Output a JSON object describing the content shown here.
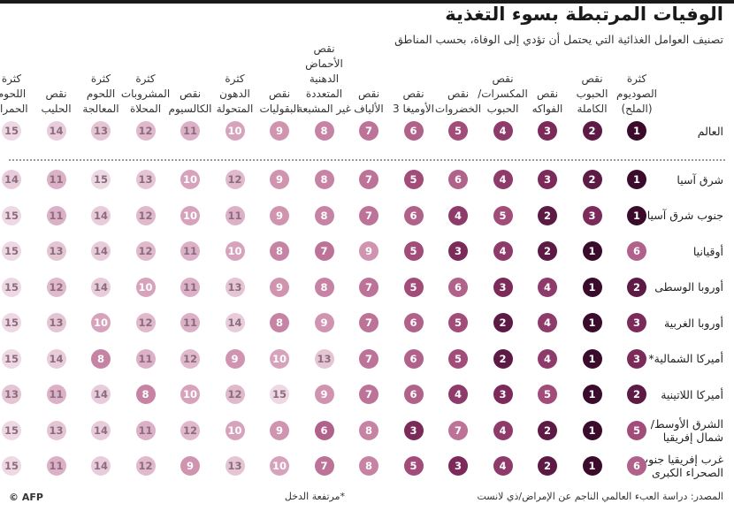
{
  "title": "الوفيات المرتبطة بسوء التغذية",
  "subtitle": "تصنيف العوامل الغذائية التي يحتمل أن تؤدي إلى الوفاة، بحسب المناطق",
  "footer": {
    "source": "المصدر: دراسة العبء العالمي الناجم عن الإمراض/ذي لانست",
    "note": "*مرتفعة الدخل",
    "logo": "© AFP"
  },
  "colors": {
    "1": "#3b0b2c",
    "2": "#5d1a45",
    "3": "#7b2a5a",
    "4": "#8e3b6b",
    "5": "#a24c7a",
    "6": "#b0628a",
    "7": "#bd7398",
    "8": "#c783a4",
    "9": "#d094b1",
    "10": "#d7a3bc",
    "11": "#dcb0c6",
    "12": "#e0b9cc",
    "13": "#e5c4d4",
    "14": "#e9ccdb",
    "15": "#eed8e3"
  },
  "chart_data": {
    "type": "table",
    "title": "الوفيات المرتبطة بسوء التغذية",
    "subtitle": "تصنيف العوامل الغذائية التي يحتمل أن تؤدي إلى الوفاة، بحسب المناطق",
    "factors": [
      "كثرة الصوديوم (الملح)",
      "نقص الحبوب الكاملة",
      "نقص الفواكه",
      "نقص المكسرات/ الحبوب",
      "نقص الخضروات",
      "نقص الأوميغا 3",
      "نقص الألياف",
      "نقص الأحماض الدهنية المتعددة غير المشبعة",
      "نقص البقوليات",
      "كثرة الدهون المتحولة",
      "نقص الكالسيوم",
      "كثرة المشروبات المحلاة",
      "كثرة اللحوم المعالجة",
      "نقص الحليب",
      "كثرة اللحوم الحمراء"
    ],
    "factor_lines": [
      [
        "كثرة",
        "الصوديوم",
        "(الملح)"
      ],
      [
        "نقص",
        "الحبوب",
        "الكاملة"
      ],
      [
        "نقص",
        "الفواكه"
      ],
      [
        "نقص",
        "المكسرات/",
        "الحبوب"
      ],
      [
        "نقص",
        "الخضروات"
      ],
      [
        "نقص",
        "الأوميغا 3"
      ],
      [
        "نقص",
        "الألياف"
      ],
      [
        "نقص",
        "الأحماض",
        "الدهنية",
        "المتعددة",
        "غير المشبعة"
      ],
      [
        "نقص",
        "البقوليات"
      ],
      [
        "كثرة",
        "الدهون",
        "المتحولة"
      ],
      [
        "نقص",
        "الكالسيوم"
      ],
      [
        "كثرة",
        "المشروبات",
        "المحلاة"
      ],
      [
        "كثرة",
        "اللحوم",
        "المعالجة"
      ],
      [
        "نقص",
        "الحليب"
      ],
      [
        "كثرة",
        "اللحوم",
        "الحمراء"
      ]
    ],
    "global": {
      "label": "العالم",
      "ranks": [
        1,
        2,
        3,
        4,
        5,
        6,
        7,
        8,
        9,
        10,
        11,
        12,
        13,
        14,
        15
      ]
    },
    "regions": [
      {
        "label": [
          "شرق آسيا"
        ],
        "ranks": [
          1,
          2,
          3,
          4,
          6,
          5,
          7,
          8,
          9,
          12,
          10,
          13,
          15,
          11,
          14
        ]
      },
      {
        "label": [
          "جنوب شرق آسيا"
        ],
        "ranks": [
          1,
          3,
          2,
          5,
          4,
          6,
          7,
          8,
          9,
          11,
          10,
          12,
          14,
          11,
          15
        ]
      },
      {
        "label": [
          "أوقيانيا"
        ],
        "ranks": [
          6,
          1,
          2,
          4,
          3,
          5,
          9,
          7,
          8,
          10,
          11,
          12,
          14,
          13,
          15
        ]
      },
      {
        "label": [
          "أوروبا الوسطى"
        ],
        "ranks": [
          2,
          1,
          4,
          3,
          6,
          5,
          7,
          8,
          9,
          13,
          11,
          10,
          14,
          12,
          15
        ]
      },
      {
        "label": [
          "أوروبا الغربية"
        ],
        "ranks": [
          3,
          1,
          4,
          2,
          5,
          6,
          7,
          9,
          8,
          14,
          11,
          12,
          10,
          13,
          15
        ]
      },
      {
        "label": [
          "أميركا الشمالية*"
        ],
        "ranks": [
          3,
          1,
          4,
          2,
          5,
          6,
          7,
          13,
          10,
          9,
          12,
          11,
          8,
          14,
          15
        ]
      },
      {
        "label": [
          "أميركا اللاتينية"
        ],
        "ranks": [
          2,
          1,
          5,
          3,
          4,
          6,
          7,
          9,
          15,
          12,
          10,
          8,
          14,
          11,
          13
        ]
      },
      {
        "label": [
          "الشرق الأوسط/",
          "شمال إفريقيا"
        ],
        "ranks": [
          5,
          1,
          2,
          4,
          7,
          3,
          8,
          6,
          9,
          10,
          12,
          11,
          14,
          13,
          15
        ]
      },
      {
        "label": [
          "غرب إفريقيا جنوب",
          "الصحراء الكبرى"
        ],
        "ranks": [
          6,
          1,
          2,
          4,
          3,
          5,
          8,
          7,
          10,
          13,
          9,
          12,
          14,
          11,
          15
        ]
      }
    ]
  }
}
